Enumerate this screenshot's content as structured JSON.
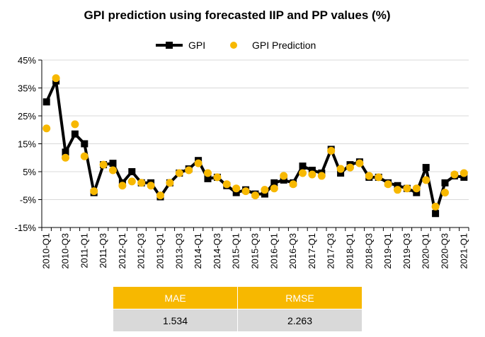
{
  "chart_data": {
    "type": "line",
    "title": "GPI prediction using forecasted IIP and PP values (%)",
    "xlabel": "",
    "ylabel": "",
    "ylim": [
      -15,
      45
    ],
    "yticks": [
      "45%",
      "35%",
      "25%",
      "15%",
      "5%",
      "-5%",
      "-15%"
    ],
    "ytick_values": [
      45,
      35,
      25,
      15,
      5,
      -5,
      -15
    ],
    "grid": true,
    "legend_position": "top-center",
    "x": [
      "2010-Q1",
      "2010-Q2",
      "2010-Q3",
      "2010-Q4",
      "2011-Q1",
      "2011-Q2",
      "2011-Q3",
      "2011-Q4",
      "2012-Q1",
      "2012-Q2",
      "2012-Q3",
      "2012-Q4",
      "2013-Q1",
      "2013-Q2",
      "2013-Q3",
      "2013-Q4",
      "2014-Q1",
      "2014-Q2",
      "2014-Q3",
      "2014-Q4",
      "2015-Q1",
      "2015-Q2",
      "2015-Q3",
      "2015-Q4",
      "2016-Q1",
      "2016-Q2",
      "2016-Q3",
      "2016-Q4",
      "2017-Q1",
      "2017-Q2",
      "2017-Q3",
      "2017-Q4",
      "2018-Q1",
      "2018-Q2",
      "2018-Q3",
      "2018-Q4",
      "2019-Q1",
      "2019-Q2",
      "2019-Q3",
      "2019-Q4",
      "2020-Q1",
      "2020-Q2",
      "2020-Q3",
      "2020-Q4",
      "2021-Q1"
    ],
    "xtick_labels": [
      "2010-Q1",
      "2010-Q3",
      "2011-Q1",
      "2011-Q3",
      "2012-Q1",
      "2012-Q3",
      "2013-Q1",
      "2013-Q3",
      "2014-Q1",
      "2014-Q3",
      "2015-Q1",
      "2015-Q3",
      "2016-Q1",
      "2016-Q3",
      "2017-Q1",
      "2017-Q3",
      "2018-Q1",
      "2018-Q3",
      "2019-Q1",
      "2019-Q3",
      "2020-Q1",
      "2020-Q3",
      "2021-Q1"
    ],
    "series": [
      {
        "name": "GPI",
        "color": "#000000",
        "marker": "square",
        "values": [
          30,
          37.5,
          12,
          18.5,
          15,
          -2.5,
          7.5,
          8,
          1,
          5,
          1,
          1,
          -4,
          1,
          4.5,
          6,
          9,
          2.5,
          3,
          0,
          -2.5,
          -1.5,
          -3,
          -3,
          1,
          2,
          1,
          7,
          5.5,
          4.5,
          13,
          4.5,
          7.5,
          8.5,
          3,
          3,
          1,
          0,
          -1,
          -2.5,
          6.5,
          -10,
          1,
          3.5,
          3
        ]
      },
      {
        "name": "GPI Prediction",
        "color": "#f7b800",
        "marker": "circle",
        "values": [
          20.5,
          38.5,
          10,
          22,
          10.5,
          -2,
          7.5,
          5.5,
          0,
          1.5,
          1,
          0,
          -3.5,
          1,
          4.5,
          5.5,
          8,
          4.5,
          3,
          0.5,
          -1,
          -2,
          -3.5,
          -1.5,
          -1,
          3.5,
          0.5,
          4.5,
          4,
          3.5,
          12.5,
          6,
          6.5,
          8,
          3.5,
          3,
          0.5,
          -1.5,
          -1,
          -1,
          2,
          -7.5,
          -2.5,
          4,
          4.5
        ]
      }
    ]
  },
  "metrics": {
    "headers": [
      "MAE",
      "RMSE"
    ],
    "values": [
      "1.534",
      "2.263"
    ],
    "header_color": "#f7b800",
    "value_bg_color": "#d9d9d9"
  }
}
